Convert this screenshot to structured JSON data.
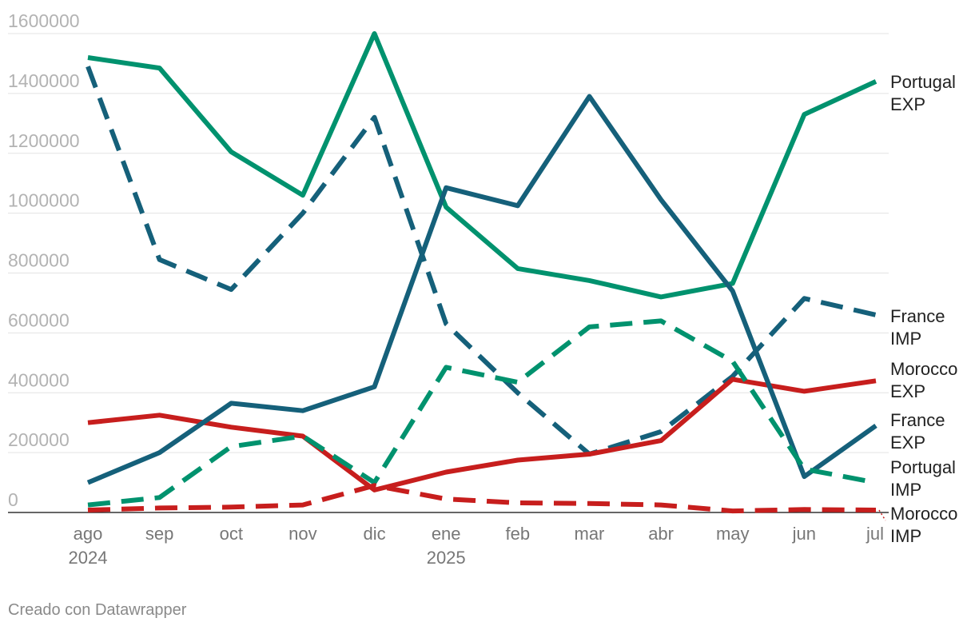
{
  "chart_data": {
    "type": "line",
    "x": [
      "ago",
      "sep",
      "oct",
      "nov",
      "dic",
      "ene",
      "feb",
      "mar",
      "abr",
      "may",
      "jun",
      "jul"
    ],
    "x_year_labels": [
      {
        "index": 0,
        "label": "2024"
      },
      {
        "index": 5,
        "label": "2025"
      }
    ],
    "ylim": [
      0,
      1600000
    ],
    "yticks": [
      "0",
      "200000",
      "400000",
      "600000",
      "800000",
      "1000000",
      "1200000",
      "1400000",
      "1600000"
    ],
    "grid": true,
    "legend": "direct labels at right end",
    "series": [
      {
        "name": "Portugal EXP",
        "label_lines": [
          "Portugal",
          "EXP"
        ],
        "color": "#00926e",
        "dashed": false,
        "values": [
          1520000,
          1485000,
          1205000,
          1060000,
          1600000,
          1020000,
          815000,
          775000,
          720000,
          765000,
          1330000,
          1440000
        ]
      },
      {
        "name": "France IMP",
        "label_lines": [
          "France",
          "IMP"
        ],
        "color": "#15607a",
        "dashed": true,
        "values": [
          1490000,
          845000,
          745000,
          1000000,
          1320000,
          630000,
          400000,
          195000,
          270000,
          455000,
          715000,
          660000
        ]
      },
      {
        "name": "Morocco EXP",
        "label_lines": [
          "Morocco",
          "EXP"
        ],
        "color": "#c71e1d",
        "dashed": false,
        "values": [
          300000,
          325000,
          285000,
          255000,
          75000,
          135000,
          175000,
          195000,
          240000,
          445000,
          405000,
          440000
        ]
      },
      {
        "name": "France EXP",
        "label_lines": [
          "France",
          "EXP"
        ],
        "color": "#15607a",
        "dashed": false,
        "values": [
          100000,
          200000,
          365000,
          340000,
          420000,
          1085000,
          1025000,
          1390000,
          1045000,
          740000,
          120000,
          290000
        ]
      },
      {
        "name": "Portugal IMP",
        "label_lines": [
          "Portugal",
          "IMP"
        ],
        "color": "#00926e",
        "dashed": true,
        "values": [
          25000,
          50000,
          220000,
          255000,
          100000,
          485000,
          435000,
          620000,
          640000,
          505000,
          145000,
          100000
        ]
      },
      {
        "name": "Morocco IMP",
        "label_lines": [
          "Morocco",
          "IMP"
        ],
        "color": "#c71e1d",
        "dashed": true,
        "values": [
          8000,
          15000,
          18000,
          25000,
          90000,
          45000,
          32000,
          30000,
          25000,
          5000,
          10000,
          8000
        ]
      }
    ]
  },
  "footer": {
    "credit": "Creado con Datawrapper"
  }
}
